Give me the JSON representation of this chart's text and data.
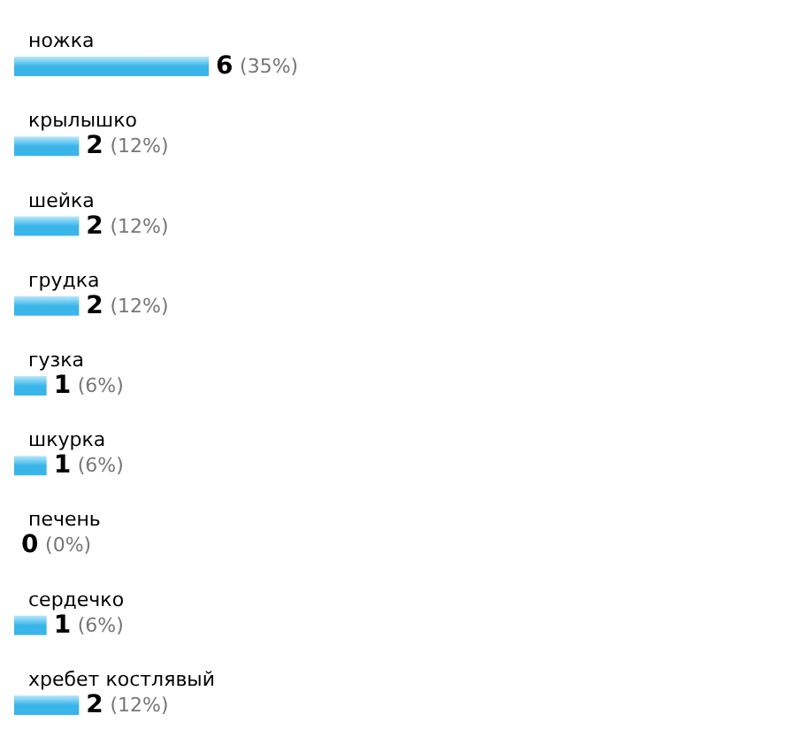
{
  "chart_data": {
    "type": "bar",
    "orientation": "horizontal",
    "categories": [
      "ножка",
      "крылышко",
      "шейка",
      "грудка",
      "гузка",
      "шкурка",
      "печень",
      "сердечко",
      "хребет костлявый"
    ],
    "values": [
      6,
      2,
      2,
      2,
      1,
      1,
      0,
      1,
      2
    ],
    "value_labels": [
      "6 (35%)",
      "2 (12%)",
      "2 (12%)",
      "2 (12%)",
      "1 (6%)",
      "1 (6%)",
      "0 (0%)",
      "1 (6%)",
      "2 (12%)"
    ],
    "color": "#39b5ea"
  }
}
